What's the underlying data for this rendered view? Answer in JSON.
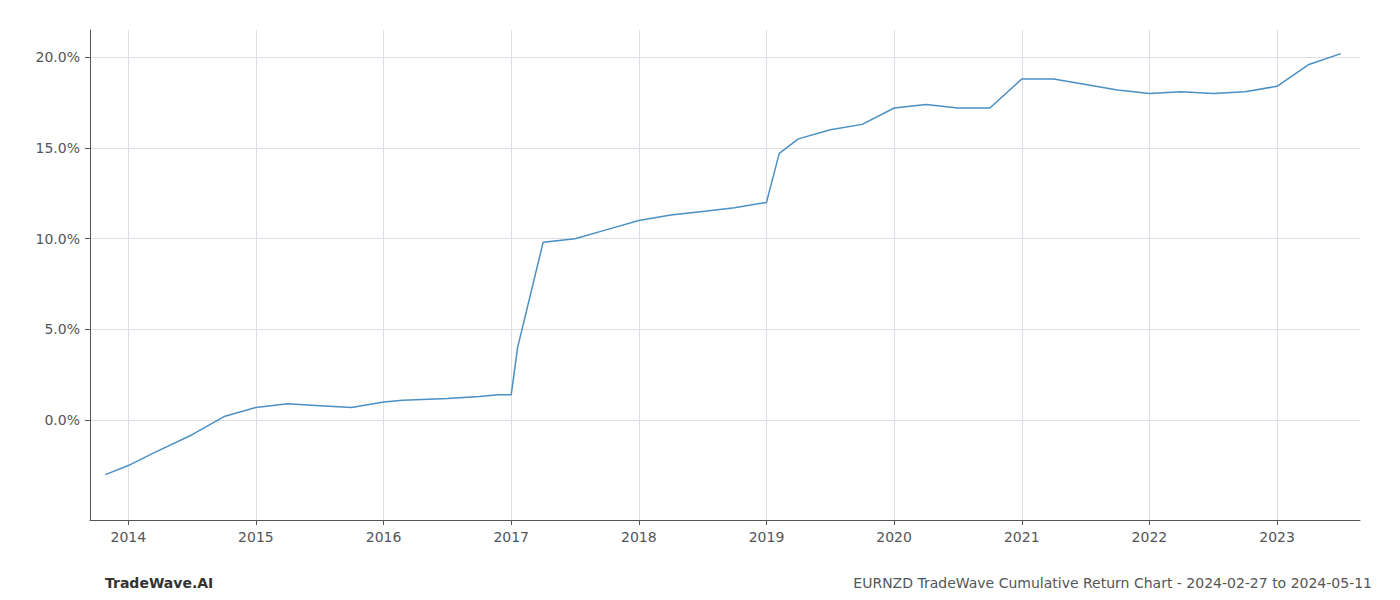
{
  "chart_data": {
    "type": "line",
    "x": [
      2013.82,
      2014.0,
      2014.2,
      2014.5,
      2014.75,
      2015.0,
      2015.25,
      2015.5,
      2015.75,
      2016.0,
      2016.15,
      2016.5,
      2016.75,
      2016.9,
      2017.0,
      2017.05,
      2017.25,
      2017.5,
      2017.75,
      2018.0,
      2018.25,
      2018.5,
      2018.75,
      2019.0,
      2019.1,
      2019.25,
      2019.5,
      2019.75,
      2020.0,
      2020.25,
      2020.5,
      2020.75,
      2021.0,
      2021.25,
      2021.5,
      2021.75,
      2022.0,
      2022.25,
      2022.5,
      2022.75,
      2023.0,
      2023.25,
      2023.5
    ],
    "values": [
      -0.03,
      -0.025,
      -0.018,
      -0.008,
      0.002,
      0.007,
      0.009,
      0.008,
      0.007,
      0.01,
      0.011,
      0.012,
      0.013,
      0.014,
      0.014,
      0.04,
      0.098,
      0.1,
      0.105,
      0.11,
      0.113,
      0.115,
      0.117,
      0.12,
      0.147,
      0.155,
      0.16,
      0.163,
      0.172,
      0.174,
      0.172,
      0.172,
      0.188,
      0.188,
      0.185,
      0.182,
      0.18,
      0.181,
      0.18,
      0.181,
      0.184,
      0.196,
      0.202
    ],
    "color": "#4a90c4",
    "xlim": [
      2013.7,
      2023.65
    ],
    "xticks": [
      2014,
      2015,
      2016,
      2017,
      2018,
      2019,
      2020,
      2021,
      2022,
      2023
    ],
    "ylim": [
      -0.055,
      0.215
    ],
    "yticks": [
      {
        "value": 0.0,
        "label": "0.0%"
      },
      {
        "value": 0.05,
        "label": "5.0%"
      },
      {
        "value": 0.1,
        "label": "10.0%"
      },
      {
        "value": 0.15,
        "label": "15.0%"
      },
      {
        "value": 0.2,
        "label": "20.0%"
      }
    ],
    "grid": true,
    "annotations": [
      "TradeWave.AI",
      "EURNZD TradeWave Cumulative Return Chart - 2024-02-27 to 2024-05-11"
    ]
  }
}
